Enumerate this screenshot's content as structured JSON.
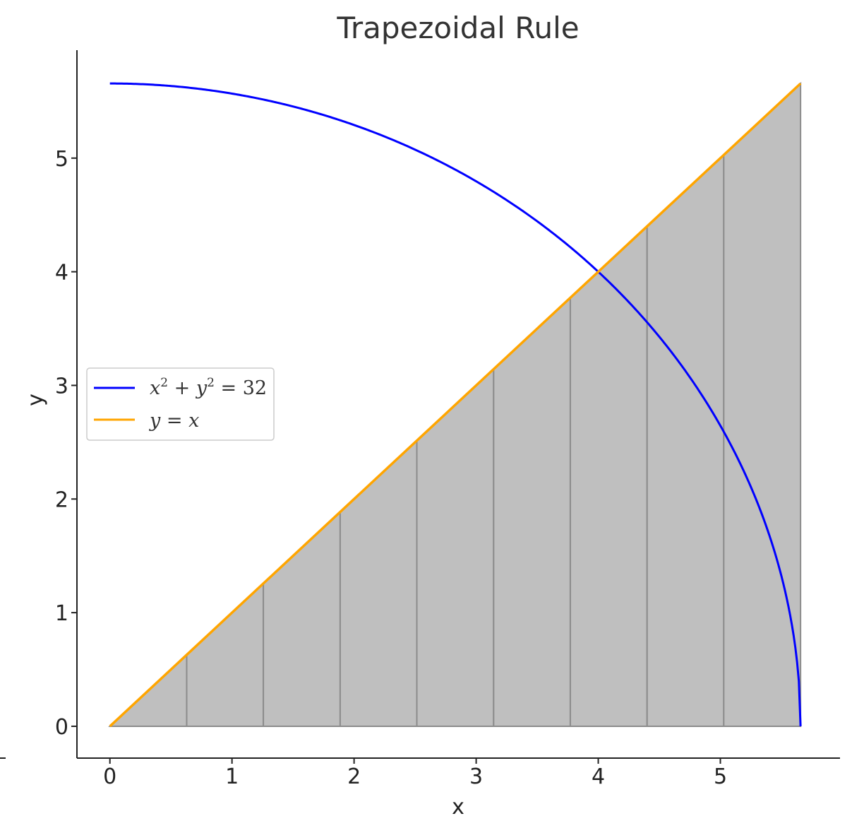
{
  "chart_data": {
    "type": "line",
    "title": "Trapezoidal Rule",
    "xlabel": "x",
    "ylabel": "y",
    "xlim": [
      -0.27,
      5.98
    ],
    "ylim": [
      -0.28,
      5.95
    ],
    "x_ticks": [
      0,
      1,
      2,
      3,
      4,
      5
    ],
    "y_ticks": [
      0,
      1,
      2,
      3,
      4,
      5
    ],
    "grid": false,
    "legend_position": "center-left",
    "series": [
      {
        "name": "x² + y² = 32",
        "equation": "x^2 + y^2 = 32",
        "color": "#0000ff",
        "x_range": [
          0,
          5.657
        ]
      },
      {
        "name": "y = x",
        "equation": "y = x",
        "color": "#ffa500",
        "x_range": [
          0,
          5.657
        ]
      }
    ],
    "trapezoids": {
      "fill_color": "#bfbfbf",
      "edge_color": "#8c8c8c",
      "x_nodes": [
        0,
        0.629,
        1.257,
        1.886,
        2.514,
        3.143,
        3.771,
        4.4,
        5.028,
        5.657
      ],
      "heights": [
        0,
        0.629,
        1.257,
        1.886,
        2.514,
        3.143,
        3.771,
        4.4,
        5.028,
        5.657
      ]
    }
  }
}
